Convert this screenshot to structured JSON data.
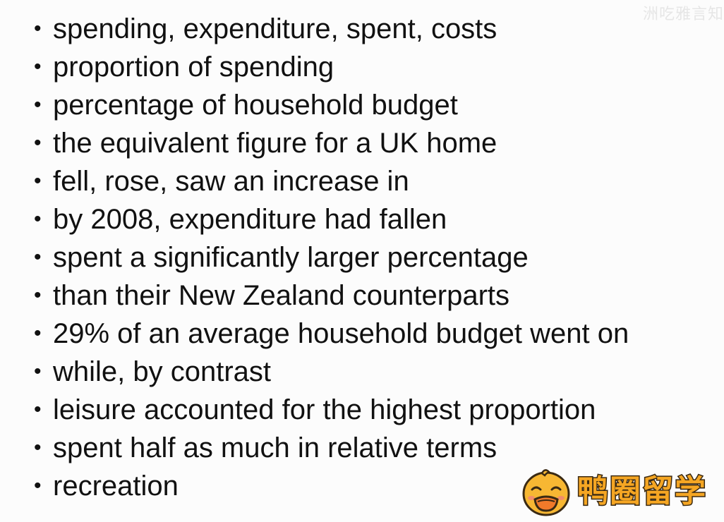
{
  "watermark_top": "洲吃雅言知",
  "bullets": [
    "spending, expenditure, spent, costs",
    "proportion of spending",
    "percentage of household budget",
    "the equivalent figure for a UK home",
    "fell, rose, saw an increase in",
    "by 2008, expenditure had fallen",
    "spent a significantly larger percentage",
    "than their New Zealand counterparts",
    "29% of an average household budget went on",
    "while, by contrast",
    "leisure accounted for the highest proportion",
    "spent half as much in relative terms",
    "recreation"
  ],
  "bullet_symbol": "•",
  "logo": {
    "icon": "duck-icon",
    "text": "鸭圈留学",
    "color": "#f5a623"
  }
}
